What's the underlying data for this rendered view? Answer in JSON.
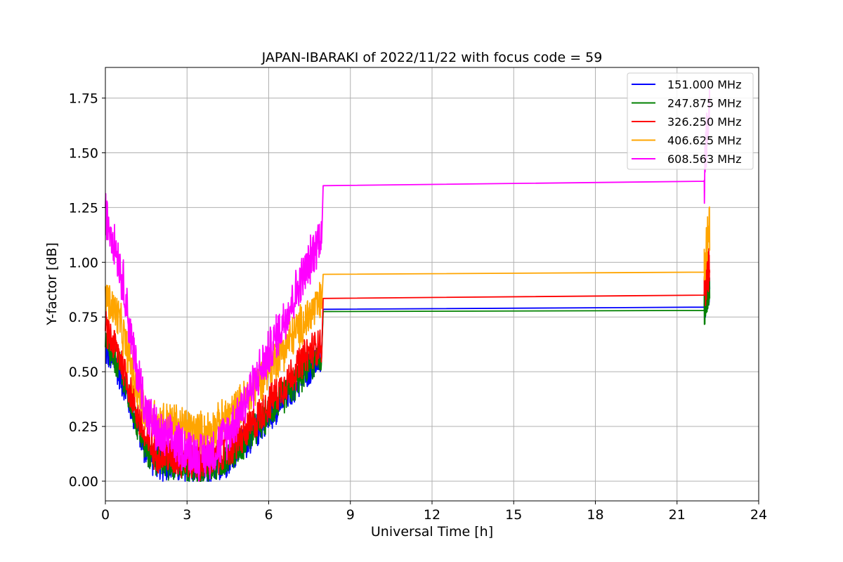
{
  "chart_data": {
    "type": "line",
    "title": "JAPAN-IBARAKI of 2022/11/22 with focus code = 59",
    "xlabel": "Universal Time [h]",
    "ylabel": "Y-factor [dB]",
    "xlim": [
      0,
      24
    ],
    "ylim": [
      -0.09,
      1.89
    ],
    "xticks": [
      0,
      3,
      6,
      9,
      12,
      15,
      18,
      21,
      24
    ],
    "xtick_labels": [
      "0",
      "3",
      "6",
      "9",
      "12",
      "15",
      "18",
      "21",
      "24"
    ],
    "yticks": [
      0.0,
      0.25,
      0.5,
      0.75,
      1.0,
      1.25,
      1.5,
      1.75
    ],
    "ytick_labels": [
      "0.00",
      "0.25",
      "0.50",
      "0.75",
      "1.00",
      "1.25",
      "1.50",
      "1.75"
    ],
    "grid": true,
    "legend_position": "top-right",
    "series": [
      {
        "name": "151.000 MHz",
        "color": "#0000ff",
        "noise": 0.035,
        "x": [
          0,
          0.5,
          1.0,
          1.5,
          2.0,
          2.5,
          3.0,
          3.5,
          4.0,
          4.5,
          5.0,
          5.5,
          6.0,
          6.5,
          7.0,
          7.5,
          7.95,
          8.0,
          22.0,
          22.1,
          22.2
        ],
        "y": [
          0.6,
          0.5,
          0.32,
          0.13,
          0.08,
          0.07,
          0.06,
          0.05,
          0.06,
          0.1,
          0.16,
          0.22,
          0.3,
          0.37,
          0.44,
          0.52,
          0.56,
          0.785,
          0.795,
          0.85,
          0.9
        ]
      },
      {
        "name": "247.875 MHz",
        "color": "#008000",
        "noise": 0.035,
        "x": [
          0,
          0.5,
          1.0,
          1.5,
          2.0,
          2.5,
          3.0,
          3.5,
          4.0,
          4.5,
          5.0,
          5.5,
          6.0,
          6.5,
          7.0,
          7.5,
          7.95,
          8.0,
          22.0,
          22.1,
          22.2
        ],
        "y": [
          0.62,
          0.52,
          0.33,
          0.14,
          0.09,
          0.08,
          0.07,
          0.06,
          0.07,
          0.11,
          0.17,
          0.23,
          0.31,
          0.38,
          0.45,
          0.53,
          0.57,
          0.775,
          0.78,
          0.86,
          0.9
        ]
      },
      {
        "name": "326.250 MHz",
        "color": "#ff0000",
        "noise": 0.04,
        "x": [
          0,
          0.5,
          1.0,
          1.5,
          2.0,
          2.5,
          3.0,
          3.5,
          4.0,
          4.5,
          5.0,
          5.5,
          6.0,
          6.5,
          7.0,
          7.5,
          7.95,
          8.0,
          22.0,
          22.1,
          22.2
        ],
        "y": [
          0.7,
          0.58,
          0.38,
          0.18,
          0.12,
          0.11,
          0.1,
          0.09,
          0.1,
          0.14,
          0.2,
          0.27,
          0.36,
          0.43,
          0.51,
          0.59,
          0.63,
          0.835,
          0.85,
          0.95,
          0.97
        ]
      },
      {
        "name": "406.625 MHz",
        "color": "#ffa500",
        "noise": 0.045,
        "x": [
          0,
          0.5,
          1.0,
          1.5,
          2.0,
          2.5,
          3.0,
          3.5,
          4.0,
          4.5,
          5.0,
          5.5,
          6.0,
          6.5,
          7.0,
          7.5,
          7.95,
          8.0,
          22.0,
          22.1,
          22.2
        ],
        "y": [
          0.85,
          0.74,
          0.5,
          0.3,
          0.27,
          0.26,
          0.24,
          0.22,
          0.24,
          0.29,
          0.35,
          0.43,
          0.52,
          0.6,
          0.68,
          0.76,
          0.82,
          0.945,
          0.955,
          1.1,
          1.15
        ]
      },
      {
        "name": "608.563 MHz",
        "color": "#ff00ff",
        "noise": 0.05,
        "x": [
          0,
          0.3,
          0.7,
          1.0,
          1.5,
          2.0,
          2.5,
          3.0,
          3.5,
          4.0,
          4.5,
          5.0,
          5.5,
          6.0,
          6.5,
          7.0,
          7.5,
          7.95,
          8.0,
          22.0,
          22.1,
          22.2
        ],
        "y": [
          1.22,
          1.12,
          0.88,
          0.6,
          0.32,
          0.2,
          0.18,
          0.15,
          0.11,
          0.14,
          0.22,
          0.33,
          0.46,
          0.58,
          0.72,
          0.86,
          1.0,
          1.15,
          1.35,
          1.37,
          1.6,
          1.75
        ]
      }
    ]
  }
}
